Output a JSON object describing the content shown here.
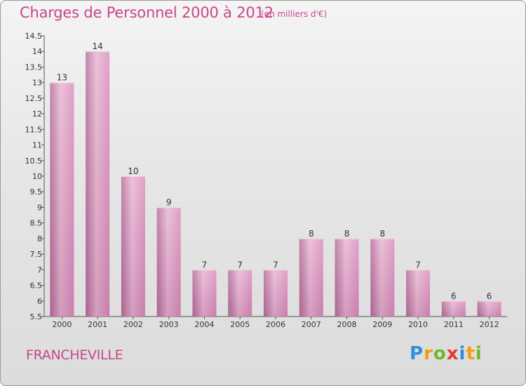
{
  "header": {
    "title": "Charges de Personnel 2000 à 2012",
    "unit": "(en milliers d'€)"
  },
  "footer": {
    "city": "FRANCHEVILLE",
    "logo": {
      "text": "Proxiti",
      "letters": [
        {
          "char": "P",
          "color": "#2f8fd8"
        },
        {
          "char": "r",
          "color": "#f39c12"
        },
        {
          "char": "o",
          "color": "#6fb82e"
        },
        {
          "char": "x",
          "color": "#e53935"
        },
        {
          "char": "i",
          "color": "#2f8fd8"
        },
        {
          "char": "t",
          "color": "#f39c12"
        },
        {
          "char": "i",
          "color": "#6fb82e"
        }
      ]
    }
  },
  "colors": {
    "bar": "#d98cbb",
    "bar_light": "#e8b4d3",
    "bar_dark": "#b36b98",
    "title": "#c9468a"
  },
  "chart_data": {
    "type": "bar",
    "title": "Charges de Personnel 2000 à 2012",
    "subtitle": "(en milliers d'€)",
    "categories": [
      "2000",
      "2001",
      "2002",
      "2003",
      "2004",
      "2005",
      "2006",
      "2007",
      "2008",
      "2009",
      "2010",
      "2011",
      "2012"
    ],
    "values": [
      13,
      14,
      10,
      9,
      7,
      7,
      7,
      8,
      8,
      8,
      7,
      6,
      6
    ],
    "data_labels": [
      "13",
      "14",
      "10",
      "9",
      "7",
      "7",
      "7",
      "8",
      "8",
      "8",
      "7",
      "6",
      "6"
    ],
    "y_ticks": [
      5.5,
      6,
      6.5,
      7,
      7.5,
      8,
      8.5,
      9,
      9.5,
      10,
      10.5,
      11,
      11.5,
      12,
      12.5,
      13,
      13.5,
      14,
      14.5
    ],
    "y_tick_labels": [
      "5.5",
      "6",
      "6.5",
      "7",
      "7.5",
      "8",
      "8.5",
      "9",
      "9.5",
      "10",
      "10.5",
      "11",
      "11.5",
      "12",
      "12.5",
      "13",
      "13.5",
      "14",
      "14.5"
    ],
    "ylim": [
      5.5,
      14.5
    ],
    "grid": false,
    "legend": "none",
    "xlabel": "",
    "ylabel": ""
  }
}
